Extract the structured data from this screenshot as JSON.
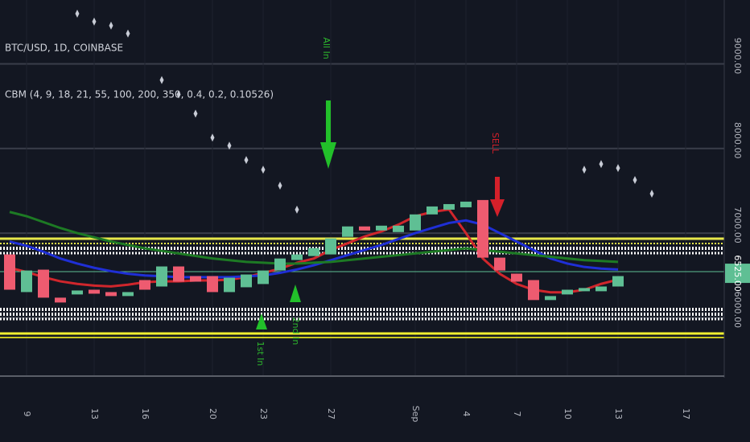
{
  "chart_data": {
    "type": "candlestick",
    "symbol": "BTC/USD, 1D, COINBASE",
    "indicator": "CBM (4, 9, 18, 21, 55, 100, 200, 350, 0.4, 0.2, 0.10526)",
    "annotations": [
      "All In",
      "SELL",
      "1st In",
      "2nd In"
    ],
    "categories": [
      null,
      "9",
      null,
      null,
      null,
      "13",
      null,
      null,
      "16",
      null,
      null,
      null,
      "20",
      null,
      null,
      "23",
      null,
      null,
      null,
      "27",
      null,
      null,
      null,
      null,
      "Sep",
      null,
      null,
      "4",
      null,
      null,
      "7",
      null,
      null,
      "10",
      null,
      null,
      "13",
      null,
      null,
      null,
      "17",
      null
    ],
    "open": [
      6748,
      6303,
      6568,
      6237,
      6275,
      6331,
      6303,
      6256,
      6445,
      6369,
      6606,
      6492,
      6492,
      6303,
      6360,
      6398,
      6558,
      6682,
      6729,
      6748,
      6956,
      7079,
      7031,
      7012,
      7031,
      7221,
      7277,
      7305,
      7391,
      6710,
      6521,
      6445,
      6209,
      6275,
      6313,
      6313,
      6369,
      null,
      null,
      null,
      null,
      null
    ],
    "close": [
      6331,
      6558,
      6237,
      6180,
      6322,
      6284,
      6256,
      6303,
      6331,
      6606,
      6426,
      6426,
      6303,
      6473,
      6511,
      6558,
      6700,
      6748,
      6823,
      6937,
      7079,
      7031,
      7088,
      7088,
      7221,
      7315,
      7343,
      7372,
      6710,
      6558,
      6426,
      6209,
      6256,
      6331,
      6351,
      6369,
      6492,
      null,
      null,
      null,
      null,
      null
    ],
    "up_color": "#5fbf94",
    "down_color": "#ee5b70",
    "series": [
      {
        "color": "#d0262c",
        "values": [
          6590,
          6540,
          6480,
          6430,
          6400,
          6380,
          6370,
          6390,
          6420,
          6430,
          6430,
          6440,
          6440,
          6450,
          6480,
          6530,
          6580,
          6650,
          6700,
          6800,
          6880,
          6960,
          7020,
          7100,
          7200,
          7250,
          7280,
          7000,
          6700,
          6520,
          6400,
          6330,
          6300,
          6300,
          6330,
          6400,
          6450,
          null,
          null,
          null,
          null,
          null
        ]
      },
      {
        "color": "#1f2fd6",
        "values": [
          6900,
          6850,
          6780,
          6700,
          6640,
          6590,
          6550,
          6520,
          6500,
          6490,
          6480,
          6480,
          6480,
          6480,
          6490,
          6500,
          6530,
          6570,
          6620,
          6680,
          6740,
          6800,
          6860,
          6930,
          7000,
          7060,
          7120,
          7150,
          7100,
          7000,
          6900,
          6800,
          6700,
          6640,
          6600,
          6580,
          6570,
          null,
          null,
          null,
          null,
          null
        ]
      },
      {
        "color": "#1d7a24",
        "values": [
          7250,
          7200,
          7130,
          7060,
          7000,
          6950,
          6900,
          6860,
          6820,
          6790,
          6760,
          6730,
          6700,
          6680,
          6660,
          6650,
          6640,
          6640,
          6650,
          6660,
          6680,
          6700,
          6720,
          6740,
          6760,
          6780,
          6800,
          6820,
          6800,
          6780,
          6760,
          6740,
          6720,
          6700,
          6680,
          6670,
          6660,
          null,
          null,
          null,
          null,
          null
        ]
      }
    ],
    "dots": {
      "color": "#c8ccd6",
      "values": [
        null,
        null,
        null,
        null,
        9594,
        9500,
        9452,
        9358,
        null,
        8809,
        8639,
        8412,
        8128,
        8034,
        7864,
        7750,
        7561,
        7277,
        null,
        null,
        null,
        null,
        null,
        null,
        null,
        null,
        null,
        null,
        null,
        null,
        null,
        null,
        null,
        null,
        7750,
        7816,
        7769,
        7627,
        7466,
        null,
        null,
        null
      ]
    },
    "ylim": [
      5310,
      9755
    ],
    "yticks": [
      {
        "value": 6000,
        "label": "6000.00"
      },
      {
        "value": 7000,
        "label": "7000.00"
      },
      {
        "value": 8000,
        "label": "8000.00"
      },
      {
        "value": 9000,
        "label": "9000.00"
      }
    ],
    "last_price": {
      "value": 6525,
      "label": "6525.00"
    },
    "grid": true
  }
}
